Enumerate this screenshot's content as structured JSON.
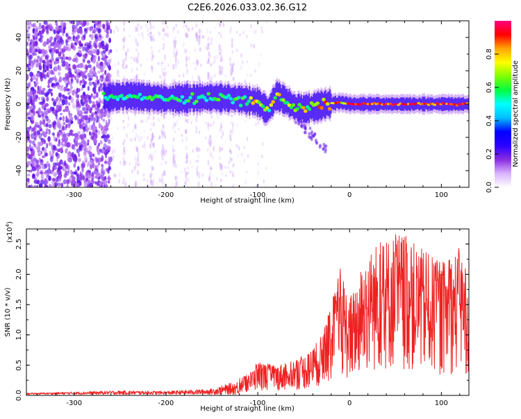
{
  "title": "C2E6.2026.033.02.36.G12",
  "chart_data": [
    {
      "type": "heatmap",
      "name": "spectrogram",
      "xlabel": "Height of straight line (km)",
      "ylabel": "Frequency (Hz)",
      "xlim": [
        -352,
        130
      ],
      "ylim": [
        -50,
        50
      ],
      "x_ticks": [
        -300,
        -200,
        -100,
        0,
        100
      ],
      "x_tick_labels": [
        "-300",
        "-200",
        "-100",
        "0",
        "100"
      ],
      "y_ticks": [
        -40,
        -20,
        0,
        20,
        40
      ],
      "y_tick_labels": [
        "-40",
        "-20",
        "0",
        "20",
        "40"
      ],
      "colorbar": {
        "label": "Normalized spectral amplitude",
        "range": [
          0,
          1
        ],
        "ticks": [
          0,
          0.2,
          0.4,
          0.6,
          0.8
        ],
        "tick_labels": [
          "0.0",
          "0.2",
          "0.4",
          "0.6",
          "0.8"
        ],
        "colors": [
          "#ffffff",
          "#d9b3ff",
          "#8a2be2",
          "#2a00ff",
          "#0000ff",
          "#00bfff",
          "#00ffff",
          "#00ff40",
          "#7fff00",
          "#ffff00",
          "#ffa500",
          "#ff0000",
          "#ff0080"
        ]
      },
      "ridge": [
        {
          "x": -265,
          "y": 4
        },
        {
          "x": -240,
          "y": 5
        },
        {
          "x": -200,
          "y": 3
        },
        {
          "x": -150,
          "y": 4
        },
        {
          "x": -120,
          "y": 3
        },
        {
          "x": -100,
          "y": 1
        },
        {
          "x": -90,
          "y": -4
        },
        {
          "x": -80,
          "y": 5
        },
        {
          "x": -70,
          "y": 2
        },
        {
          "x": -60,
          "y": -2
        },
        {
          "x": -50,
          "y": -3
        },
        {
          "x": -40,
          "y": -2
        },
        {
          "x": -25,
          "y": 0
        },
        {
          "x": -10,
          "y": 1
        },
        {
          "x": 0,
          "y": 0
        },
        {
          "x": 50,
          "y": 0
        },
        {
          "x": 130,
          "y": 0
        }
      ]
    },
    {
      "type": "line",
      "name": "snr",
      "xlabel": "Height of straight line (km)",
      "ylabel": "SNR (10 * v/v)",
      "ylabel_multiplier": "(x10",
      "ylabel_exponent": "4",
      "ylabel_close": ")",
      "xlim": [
        -352,
        130
      ],
      "ylim": [
        0,
        2.75
      ],
      "x_ticks": [
        -300,
        -200,
        -100,
        0,
        100
      ],
      "x_tick_labels": [
        "-300",
        "-200",
        "-100",
        "0",
        "100"
      ],
      "y_ticks": [
        0,
        0.5,
        1.0,
        1.5,
        2.0,
        2.5
      ],
      "y_tick_labels": [
        "0.0",
        "0.5",
        "1.0",
        "1.5",
        "2.0",
        "2.5"
      ],
      "color": "#ee2222",
      "envelope": [
        {
          "x": -352,
          "y": 0.03
        },
        {
          "x": -250,
          "y": 0.08
        },
        {
          "x": -200,
          "y": 0.07
        },
        {
          "x": -150,
          "y": 0.12
        },
        {
          "x": -110,
          "y": 0.35
        },
        {
          "x": -100,
          "y": 0.55
        },
        {
          "x": -80,
          "y": 0.5
        },
        {
          "x": -60,
          "y": 0.6
        },
        {
          "x": -45,
          "y": 0.7
        },
        {
          "x": -30,
          "y": 1.0
        },
        {
          "x": -20,
          "y": 1.5
        },
        {
          "x": -10,
          "y": 2.1
        },
        {
          "x": 0,
          "y": 1.6
        },
        {
          "x": 15,
          "y": 2.2
        },
        {
          "x": 30,
          "y": 2.55
        },
        {
          "x": 55,
          "y": 2.72
        },
        {
          "x": 80,
          "y": 2.4
        },
        {
          "x": 100,
          "y": 2.2
        },
        {
          "x": 120,
          "y": 2.45
        },
        {
          "x": 130,
          "y": 1.9
        }
      ]
    }
  ]
}
